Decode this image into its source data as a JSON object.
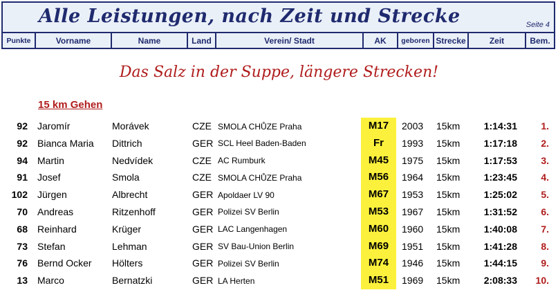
{
  "banner": {
    "title": "Alle Leistungen, nach Zeit und Strecke",
    "page": "Seite 4"
  },
  "columns": [
    "Punkte",
    "Vorname",
    "Name",
    "Land",
    "Verein/ Stadt",
    "AK",
    "geboren",
    "Strecke",
    "Zeit",
    "Bem."
  ],
  "subtitle": "Das Salz in der Suppe, längere Strecken!",
  "section_title": "15 km Gehen",
  "colors": {
    "header_blue": "#1f2a6e",
    "accent_red": "#b01c1c",
    "highlight_yellow": "#fbf13c"
  },
  "rows": [
    {
      "punkte": "92",
      "vorname": "Jaromír",
      "name": "Morávek",
      "land": "CZE",
      "verein": "SMOLA CHŮZE Praha",
      "ak": "M17",
      "geboren": "2003",
      "strecke": "15km",
      "zeit": "1:14:31",
      "bem": "1."
    },
    {
      "punkte": "92",
      "vorname": "Bianca Maria",
      "name": "Dittrich",
      "land": "GER",
      "verein": "SCL Heel Baden-Baden",
      "ak": "Fr",
      "geboren": "1993",
      "strecke": "15km",
      "zeit": "1:17:18",
      "bem": "2."
    },
    {
      "punkte": "94",
      "vorname": "Martin",
      "name": "Nedvídek",
      "land": "CZE",
      "verein": "AC Rumburk",
      "ak": "M45",
      "geboren": "1975",
      "strecke": "15km",
      "zeit": "1:17:53",
      "bem": "3."
    },
    {
      "punkte": "91",
      "vorname": "Josef",
      "name": "Smola",
      "land": "CZE",
      "verein": "SMOLA CHŮZE Praha",
      "ak": "M56",
      "geboren": "1964",
      "strecke": "15km",
      "zeit": "1:23:45",
      "bem": "4."
    },
    {
      "punkte": "102",
      "vorname": "Jürgen",
      "name": "Albrecht",
      "land": "GER",
      "verein": "Apoldaer LV 90",
      "ak": "M67",
      "geboren": "1953",
      "strecke": "15km",
      "zeit": "1:25:02",
      "bem": "5."
    },
    {
      "punkte": "70",
      "vorname": "Andreas",
      "name": "Ritzenhoff",
      "land": "GER",
      "verein": "Polizei SV Berlin",
      "ak": "M53",
      "geboren": "1967",
      "strecke": "15km",
      "zeit": "1:31:52",
      "bem": "6."
    },
    {
      "punkte": "68",
      "vorname": "Reinhard",
      "name": "Krüger",
      "land": "GER",
      "verein": "LAC Langenhagen",
      "ak": "M60",
      "geboren": "1960",
      "strecke": "15km",
      "zeit": "1:40:08",
      "bem": "7."
    },
    {
      "punkte": "73",
      "vorname": "Stefan",
      "name": "Lehman",
      "land": "GER",
      "verein": "SV Bau-Union Berlin",
      "ak": "M69",
      "geboren": "1951",
      "strecke": "15km",
      "zeit": "1:41:28",
      "bem": "8."
    },
    {
      "punkte": "76",
      "vorname": "Bernd Ocker",
      "name": "Hölters",
      "land": "GER",
      "verein": "Polizei SV Berlin",
      "ak": "M74",
      "geboren": "1946",
      "strecke": "15km",
      "zeit": "1:44:15",
      "bem": "9."
    },
    {
      "punkte": "13",
      "vorname": "Marco",
      "name": "Bernatzki",
      "land": "GER",
      "verein": "LA Herten",
      "ak": "M51",
      "geboren": "1969",
      "strecke": "15km",
      "zeit": "2:08:33",
      "bem": "10."
    }
  ]
}
